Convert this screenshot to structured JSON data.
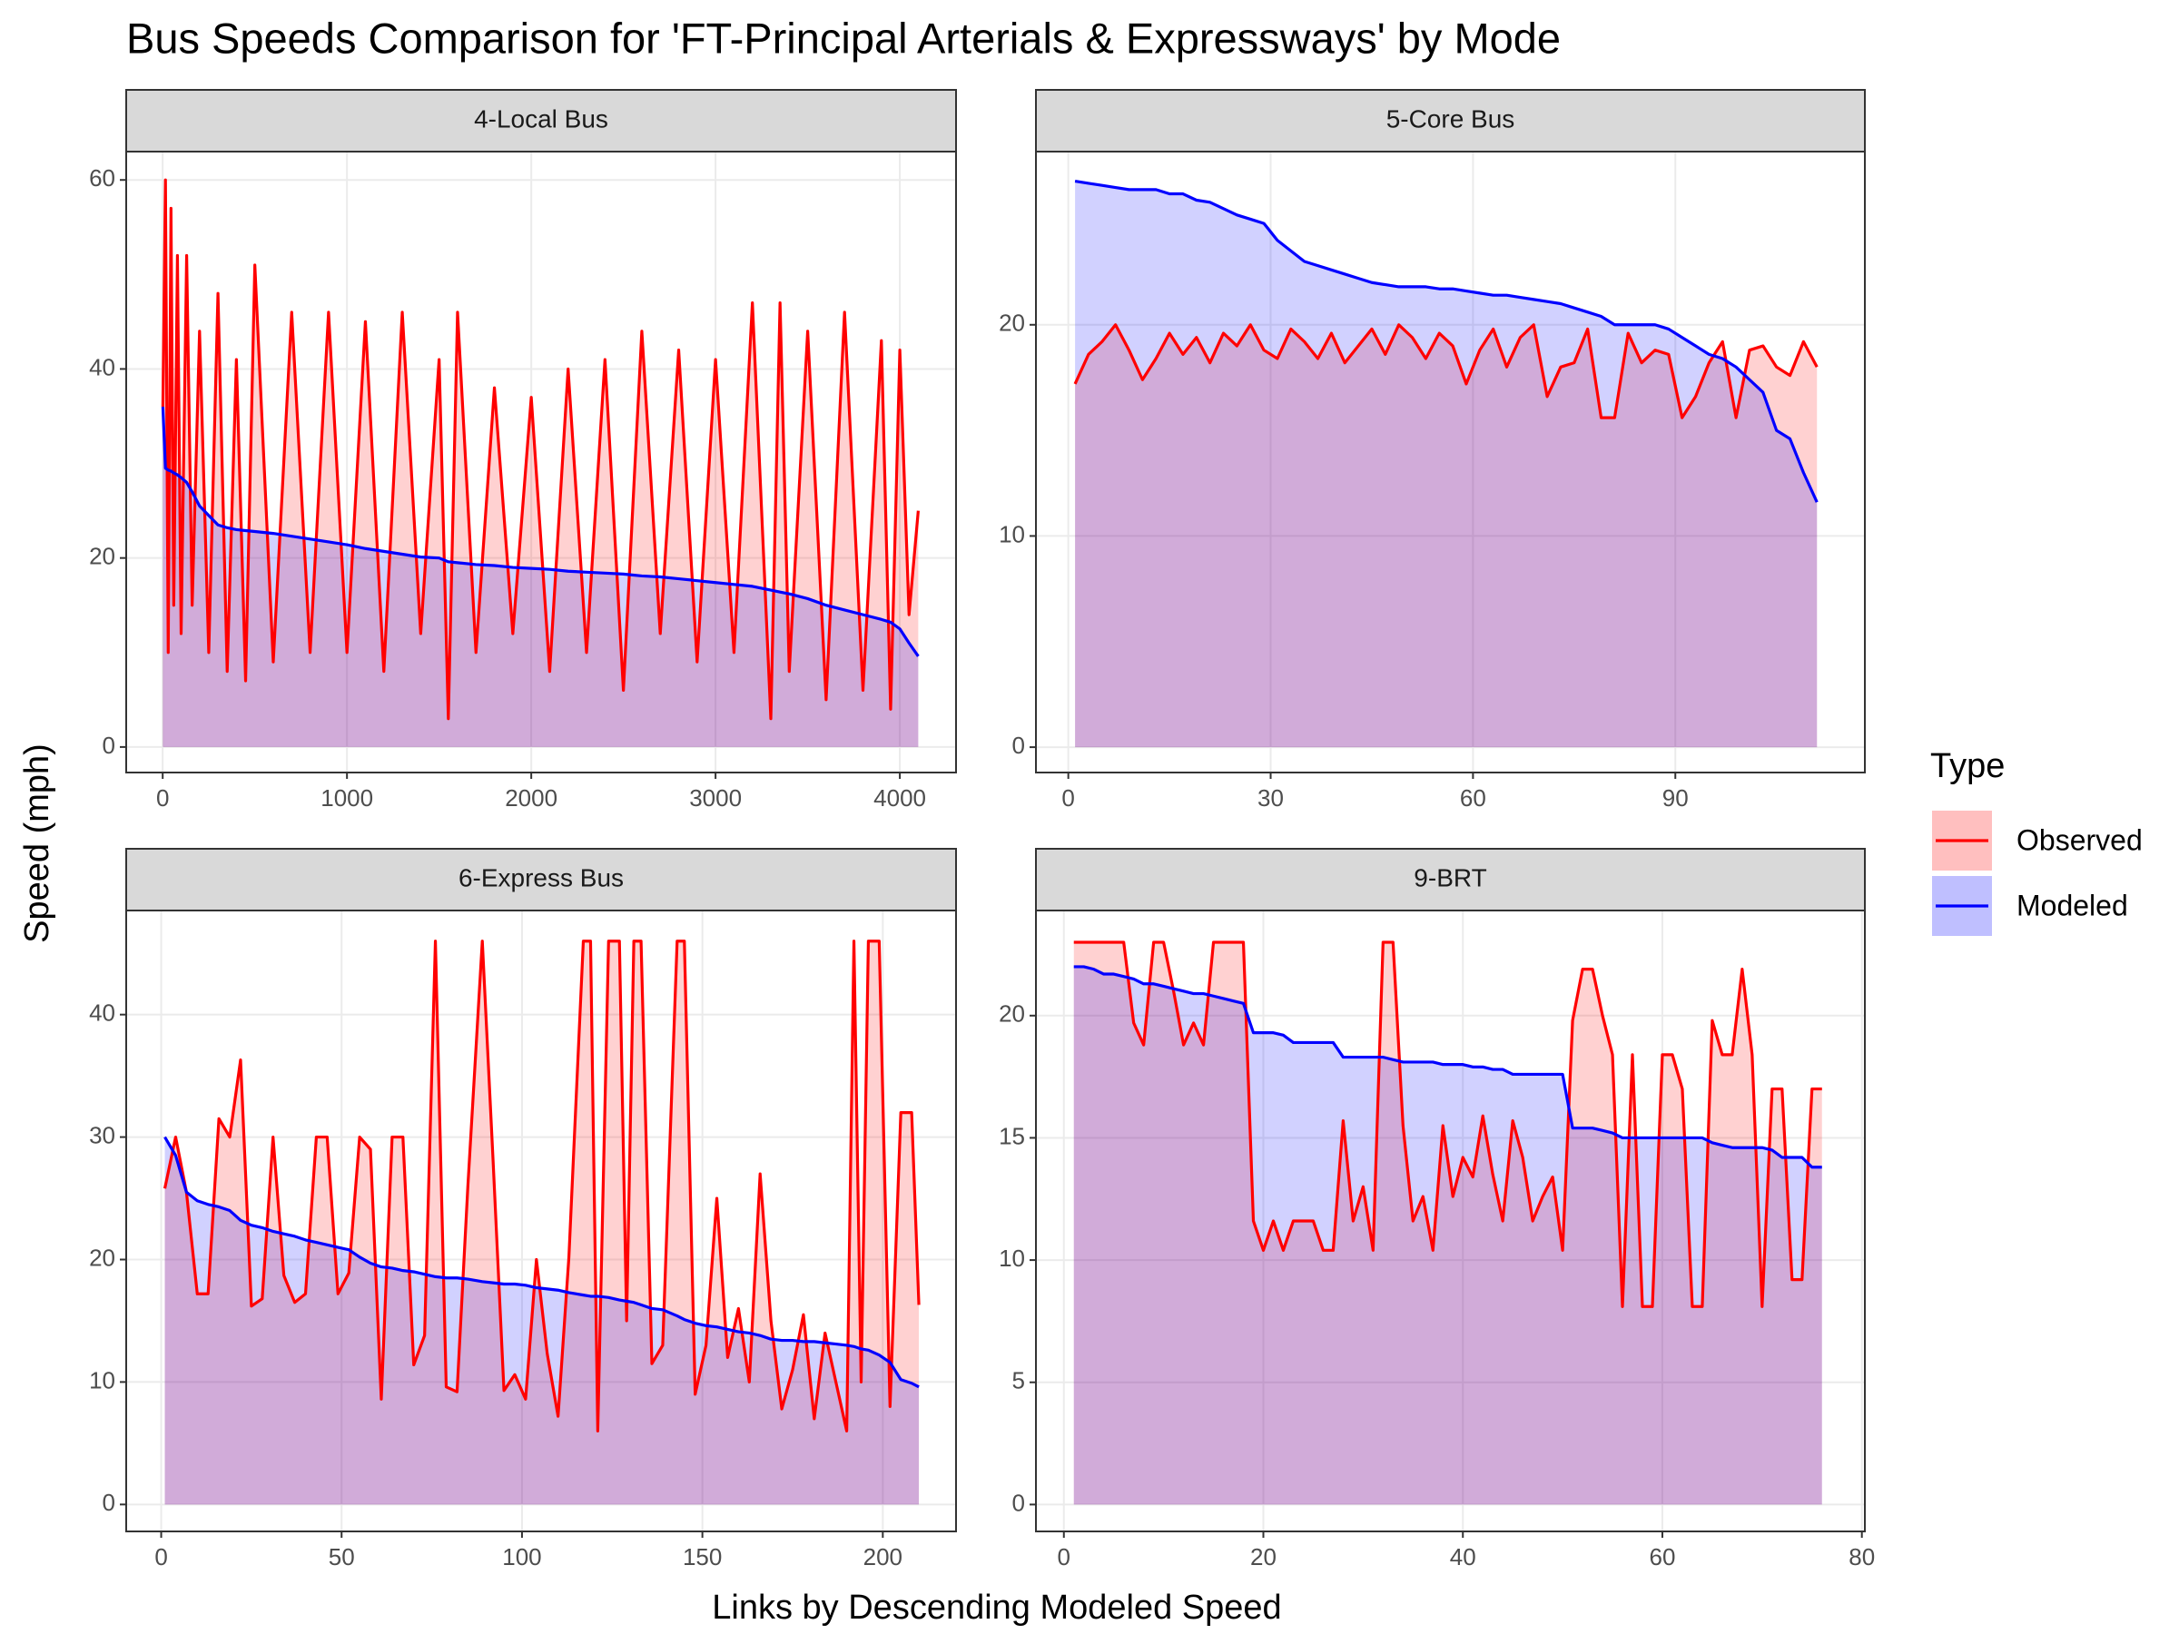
{
  "title": "Bus Speeds Comparison for 'FT-Principal Arterials & Expressways' by Mode",
  "x_label": "Links by Descending Modeled Speed",
  "y_label": "Speed (mph)",
  "legend_title": "Type",
  "chart_data": [
    {
      "type": "line",
      "title": "4-Local Bus",
      "x": [
        1,
        15,
        30,
        45,
        60,
        80,
        100,
        130,
        160,
        200,
        250,
        300,
        350,
        400,
        450,
        500,
        600,
        700,
        800,
        900,
        1000,
        1100,
        1200,
        1300,
        1400,
        1500,
        1550,
        1600,
        1700,
        1800,
        1900,
        2000,
        2100,
        2200,
        2300,
        2400,
        2500,
        2600,
        2700,
        2800,
        2900,
        3000,
        3100,
        3200,
        3300,
        3350,
        3400,
        3500,
        3600,
        3700,
        3800,
        3900,
        3950,
        4000,
        4050,
        4100
      ],
      "series": [
        {
          "name": "Observed",
          "color": "#ff0000",
          "values": [
            36,
            60,
            10,
            57,
            15,
            52,
            12,
            52,
            15,
            44,
            10,
            48,
            8,
            41,
            7,
            51,
            9,
            46,
            10,
            46,
            10,
            45,
            8,
            46,
            12,
            41,
            3,
            46,
            10,
            38,
            12,
            37,
            8,
            40,
            10,
            41,
            6,
            44,
            12,
            42,
            9,
            41,
            10,
            47,
            3,
            47,
            8,
            44,
            5,
            46,
            6,
            43,
            4,
            42,
            14,
            25
          ]
        },
        {
          "name": "Modeled",
          "color": "#0000ff",
          "values": [
            36,
            29.5,
            29.3,
            29.2,
            29,
            28.8,
            28.5,
            28,
            27,
            25.5,
            24.5,
            23.5,
            23.2,
            23,
            22.9,
            22.8,
            22.6,
            22.3,
            22,
            21.7,
            21.4,
            21,
            20.7,
            20.4,
            20.1,
            20,
            19.6,
            19.5,
            19.3,
            19.2,
            19,
            18.9,
            18.8,
            18.6,
            18.5,
            18.4,
            18.3,
            18.1,
            18,
            17.8,
            17.6,
            17.4,
            17.2,
            17,
            16.6,
            16.4,
            16.2,
            15.7,
            15,
            14.5,
            14,
            13.5,
            13.2,
            12.5,
            11,
            9.6
          ]
        }
      ],
      "xlim": [
        -198,
        4305
      ],
      "xticks": [
        0,
        1000,
        2000,
        3000,
        4000
      ],
      "ylim": [
        -2.7,
        63
      ],
      "yticks": [
        0,
        20,
        40,
        60
      ],
      "grid": true
    },
    {
      "type": "line",
      "title": "5-Core Bus",
      "x": [
        1,
        3,
        5,
        7,
        9,
        11,
        13,
        15,
        17,
        19,
        21,
        23,
        25,
        27,
        29,
        31,
        33,
        35,
        37,
        39,
        41,
        43,
        45,
        47,
        49,
        51,
        53,
        55,
        57,
        59,
        61,
        63,
        65,
        67,
        69,
        71,
        73,
        75,
        77,
        79,
        81,
        83,
        85,
        87,
        89,
        91,
        93,
        95,
        97,
        99,
        101,
        103,
        105,
        107,
        109,
        111
      ],
      "series": [
        {
          "name": "Observed",
          "color": "#ff0000",
          "values": [
            17.2,
            18.6,
            19.2,
            20,
            18.8,
            17.4,
            18.4,
            19.6,
            18.6,
            19.4,
            18.2,
            19.6,
            19,
            20,
            18.8,
            18.4,
            19.8,
            19.2,
            18.4,
            19.6,
            18.2,
            19,
            19.8,
            18.6,
            20,
            19.4,
            18.4,
            19.6,
            19,
            17.2,
            18.8,
            19.8,
            18,
            19.4,
            20,
            16.6,
            18,
            18.2,
            19.8,
            15.6,
            15.6,
            19.6,
            18.2,
            18.8,
            18.6,
            15.6,
            16.6,
            18.2,
            19.2,
            15.6,
            18.8,
            19,
            18,
            17.6,
            19.2,
            18
          ]
        },
        {
          "name": "Modeled",
          "color": "#0000ff",
          "values": [
            26.8,
            26.7,
            26.6,
            26.5,
            26.4,
            26.4,
            26.4,
            26.2,
            26.2,
            25.9,
            25.8,
            25.5,
            25.2,
            25,
            24.8,
            24,
            23.5,
            23,
            22.8,
            22.6,
            22.4,
            22.2,
            22,
            21.9,
            21.8,
            21.8,
            21.8,
            21.7,
            21.7,
            21.6,
            21.5,
            21.4,
            21.4,
            21.3,
            21.2,
            21.1,
            21,
            20.8,
            20.6,
            20.4,
            20,
            20,
            20,
            20,
            19.8,
            19.4,
            19,
            18.6,
            18.4,
            18,
            17.4,
            16.8,
            15,
            14.6,
            13,
            11.6
          ]
        }
      ],
      "xlim": [
        -4.8,
        118.1
      ],
      "xticks": [
        0,
        30,
        60,
        90
      ],
      "ylim": [
        -1.2,
        28.2
      ],
      "yticks": [
        0,
        10,
        20
      ],
      "grid": true
    },
    {
      "type": "line",
      "title": "6-Express Bus",
      "x": [
        1,
        4,
        7,
        10,
        13,
        16,
        19,
        22,
        25,
        28,
        31,
        34,
        37,
        40,
        43,
        46,
        49,
        52,
        55,
        58,
        61,
        64,
        67,
        70,
        73,
        76,
        79,
        82,
        85,
        89,
        92,
        95,
        98,
        101,
        104,
        107,
        110,
        113,
        117,
        119,
        121,
        124,
        127,
        129,
        131,
        133,
        136,
        139,
        143,
        145,
        148,
        151,
        154,
        157,
        160,
        163,
        166,
        169,
        172,
        175,
        178,
        181,
        184,
        187,
        190,
        192,
        194,
        196,
        199,
        202,
        205,
        208,
        210
      ],
      "series": [
        {
          "name": "Observed",
          "color": "#ff0000",
          "values": [
            25.8,
            30,
            25.5,
            17.2,
            17.2,
            31.5,
            30,
            36.3,
            16.2,
            16.8,
            30,
            18.7,
            16.5,
            17.2,
            30,
            30,
            17.2,
            18.9,
            30,
            29,
            8.6,
            30,
            30,
            11.4,
            13.8,
            46,
            9.6,
            9.2,
            26,
            46,
            28,
            9.3,
            10.6,
            8.6,
            20,
            12.3,
            7.2,
            20.2,
            46,
            46,
            6,
            46,
            46,
            15,
            46,
            46,
            11.5,
            13,
            46,
            46,
            9,
            13,
            25,
            12,
            16,
            10,
            27,
            15,
            7.8,
            11,
            15.5,
            7,
            14,
            10,
            6,
            46,
            10,
            46,
            46,
            8,
            32,
            32,
            16.3
          ]
        },
        {
          "name": "Modeled",
          "color": "#0000ff",
          "values": [
            30,
            28.5,
            25.5,
            24.8,
            24.5,
            24.3,
            24,
            23.2,
            22.8,
            22.6,
            22.3,
            22.1,
            21.9,
            21.6,
            21.4,
            21.2,
            21,
            20.8,
            20.2,
            19.7,
            19.4,
            19.3,
            19.1,
            19,
            18.8,
            18.6,
            18.5,
            18.5,
            18.4,
            18.2,
            18.1,
            18,
            18,
            17.9,
            17.7,
            17.6,
            17.5,
            17.3,
            17.1,
            17,
            17,
            16.9,
            16.7,
            16.6,
            16.5,
            16.3,
            16,
            15.9,
            15.4,
            15.1,
            14.8,
            14.6,
            14.5,
            14.3,
            14.1,
            14,
            13.8,
            13.5,
            13.4,
            13.4,
            13.3,
            13.3,
            13.2,
            13.1,
            13,
            12.9,
            12.7,
            12.6,
            12.2,
            11.6,
            10.2,
            9.9,
            9.6
          ]
        }
      ],
      "xlim": [
        -9.7,
        220.3
      ],
      "xticks": [
        0,
        50,
        100,
        150,
        200
      ],
      "ylim": [
        -2.2,
        48.5
      ],
      "yticks": [
        0,
        10,
        20,
        30,
        40
      ],
      "grid": true
    },
    {
      "type": "line",
      "title": "9-BRT",
      "x": [
        1,
        2,
        3,
        4,
        5,
        6,
        7,
        8,
        9,
        10,
        11,
        12,
        13,
        14,
        15,
        16,
        17,
        18,
        19,
        20,
        21,
        22,
        23,
        24,
        25,
        26,
        27,
        28,
        29,
        30,
        31,
        32,
        33,
        34,
        35,
        36,
        37,
        38,
        39,
        40,
        41,
        42,
        43,
        44,
        45,
        46,
        47,
        48,
        49,
        50,
        51,
        52,
        53,
        54,
        55,
        56,
        57,
        58,
        59,
        60,
        61,
        62,
        63,
        64,
        65,
        66,
        67,
        68,
        69,
        70,
        71,
        72,
        73,
        74,
        75,
        76
      ],
      "series": [
        {
          "name": "Observed",
          "color": "#ff0000",
          "values": [
            23,
            23,
            23,
            23,
            23,
            23,
            19.7,
            18.8,
            23,
            23,
            21,
            18.8,
            19.7,
            18.8,
            23,
            23,
            23,
            23,
            11.6,
            10.4,
            11.6,
            10.4,
            11.6,
            11.6,
            11.6,
            10.4,
            10.4,
            15.7,
            11.6,
            13,
            10.4,
            23,
            23,
            15.5,
            11.6,
            12.6,
            10.4,
            15.5,
            12.6,
            14.2,
            13.4,
            15.9,
            13.5,
            11.6,
            15.7,
            14.2,
            11.6,
            12.6,
            13.4,
            10.4,
            19.8,
            21.9,
            21.9,
            20,
            18.4,
            8.1,
            18.4,
            8.1,
            8.1,
            18.4,
            18.4,
            17,
            8.1,
            8.1,
            19.8,
            18.4,
            18.4,
            21.9,
            18.4,
            8.1,
            17,
            17,
            9.2,
            9.2,
            17,
            17
          ]
        },
        {
          "name": "Modeled",
          "color": "#0000ff",
          "values": [
            22,
            22,
            21.9,
            21.7,
            21.7,
            21.6,
            21.5,
            21.3,
            21.3,
            21.2,
            21.1,
            21,
            20.9,
            20.9,
            20.8,
            20.7,
            20.6,
            20.5,
            19.3,
            19.3,
            19.3,
            19.2,
            18.9,
            18.9,
            18.9,
            18.9,
            18.9,
            18.3,
            18.3,
            18.3,
            18.3,
            18.3,
            18.2,
            18.1,
            18.1,
            18.1,
            18.1,
            18,
            18,
            18,
            17.9,
            17.9,
            17.8,
            17.8,
            17.6,
            17.6,
            17.6,
            17.6,
            17.6,
            17.6,
            15.4,
            15.4,
            15.4,
            15.3,
            15.2,
            15,
            15,
            15,
            15,
            15,
            15,
            15,
            15,
            15,
            14.8,
            14.7,
            14.6,
            14.6,
            14.6,
            14.6,
            14.5,
            14.2,
            14.2,
            14.2,
            13.8,
            13.8
          ]
        }
      ],
      "xlim": [
        -2.8,
        80.3
      ],
      "xticks": [
        0,
        20,
        40,
        60,
        80
      ],
      "ylim": [
        -1.1,
        24.3
      ],
      "yticks": [
        0,
        5,
        10,
        15,
        20
      ],
      "grid": true
    }
  ]
}
